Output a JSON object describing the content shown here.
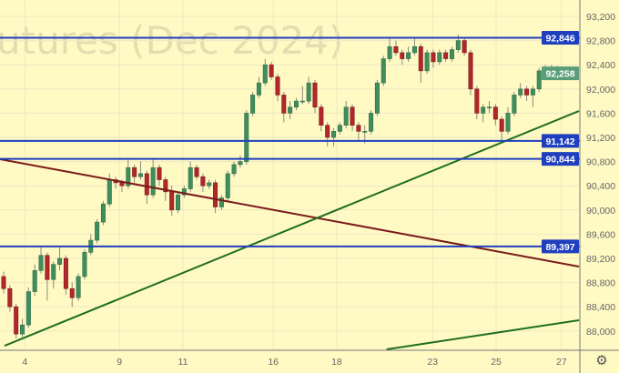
{
  "watermark": "utures (Dec 2024)",
  "settings_icon": "gear-icon",
  "colors": {
    "background": "#fff9c4",
    "grid": "#efe8c2",
    "up": "#3f8f5e",
    "down": "#b3262a",
    "level": "#1f3fbf",
    "resistance_line": "#7a1a1a",
    "support_line": "#1f6e1f",
    "last_price": "#5a9e78"
  },
  "chart_data": {
    "type": "candlestick",
    "title": "",
    "ylim": [
      87800,
      93300
    ],
    "y_ticks": [
      "93,200",
      "92,800",
      "92,400",
      "92,000",
      "91,600",
      "91,200",
      "90,800",
      "90,400",
      "90,000",
      "89,600",
      "89,200",
      "88,800",
      "88,400",
      "88,000"
    ],
    "y_tick_values": [
      93200,
      92800,
      92400,
      92000,
      91600,
      91200,
      90800,
      90400,
      90000,
      89600,
      89200,
      88800,
      88400,
      88000
    ],
    "x_ticks": [
      {
        "label": "4",
        "index": 3.4
      },
      {
        "label": "9",
        "index": 18.6
      },
      {
        "label": "11",
        "index": 28.8
      },
      {
        "label": "16",
        "index": 43.3
      },
      {
        "label": "18",
        "index": 53.5
      },
      {
        "label": "23",
        "index": 68.9
      },
      {
        "label": "25",
        "index": 79.1
      },
      {
        "label": "27",
        "index": 89.6
      }
    ],
    "grid": true,
    "ohlc": [
      [
        88900,
        88980,
        88620,
        88700
      ],
      [
        88700,
        88760,
        88320,
        88400
      ],
      [
        88400,
        88450,
        87880,
        87950
      ],
      [
        87950,
        88200,
        87900,
        88100
      ],
      [
        88100,
        88720,
        88050,
        88650
      ],
      [
        88650,
        89100,
        88580,
        89000
      ],
      [
        89000,
        89400,
        88950,
        89250
      ],
      [
        89250,
        89300,
        88500,
        88850
      ],
      [
        88850,
        89150,
        88700,
        89100
      ],
      [
        89100,
        89400,
        89000,
        89200
      ],
      [
        89200,
        89250,
        88600,
        88700
      ],
      [
        88700,
        88800,
        88400,
        88550
      ],
      [
        88550,
        88950,
        88500,
        88900
      ],
      [
        88900,
        89350,
        88850,
        89300
      ],
      [
        89300,
        89600,
        89250,
        89500
      ],
      [
        89500,
        89850,
        89450,
        89800
      ],
      [
        89800,
        90150,
        89750,
        90100
      ],
      [
        90100,
        90600,
        90050,
        90500
      ],
      [
        90500,
        90550,
        90350,
        90450
      ],
      [
        90450,
        90500,
        90300,
        90400
      ],
      [
        90400,
        90850,
        90350,
        90700
      ],
      [
        90700,
        90750,
        90450,
        90550
      ],
      [
        90550,
        90800,
        90500,
        90600
      ],
      [
        90600,
        90650,
        90100,
        90250
      ],
      [
        90250,
        90850,
        90200,
        90700
      ],
      [
        90700,
        90750,
        90400,
        90500
      ],
      [
        90500,
        90550,
        90150,
        90300
      ],
      [
        90300,
        90400,
        89900,
        90000
      ],
      [
        90000,
        90300,
        89950,
        90250
      ],
      [
        90250,
        90400,
        90200,
        90350
      ],
      [
        90350,
        90800,
        90300,
        90700
      ],
      [
        90700,
        90750,
        90500,
        90550
      ],
      [
        90550,
        90600,
        90300,
        90400
      ],
      [
        90400,
        90500,
        90350,
        90450
      ],
      [
        90450,
        90500,
        89950,
        90050
      ],
      [
        90050,
        90250,
        90000,
        90200
      ],
      [
        90200,
        90650,
        90150,
        90600
      ],
      [
        90600,
        90800,
        90550,
        90750
      ],
      [
        90750,
        90900,
        90700,
        90800
      ],
      [
        90800,
        91650,
        90750,
        91600
      ],
      [
        91600,
        91950,
        91550,
        91900
      ],
      [
        91900,
        92200,
        91850,
        92100
      ],
      [
        92100,
        92500,
        92050,
        92400
      ],
      [
        92400,
        92450,
        92150,
        92200
      ],
      [
        92200,
        92250,
        91800,
        91900
      ],
      [
        91900,
        91950,
        91450,
        91600
      ],
      [
        91600,
        91800,
        91500,
        91700
      ],
      [
        91700,
        91850,
        91650,
        91800
      ],
      [
        91800,
        92050,
        91750,
        91800
      ],
      [
        91800,
        92200,
        91750,
        92100
      ],
      [
        92100,
        92150,
        91600,
        91700
      ],
      [
        91700,
        91750,
        91300,
        91400
      ],
      [
        91400,
        91450,
        91050,
        91200
      ],
      [
        91200,
        91350,
        91050,
        91300
      ],
      [
        91300,
        91450,
        91250,
        91400
      ],
      [
        91400,
        91800,
        91350,
        91700
      ],
      [
        91700,
        91750,
        91300,
        91400
      ],
      [
        91400,
        91450,
        91150,
        91300
      ],
      [
        91300,
        91400,
        91100,
        91300
      ],
      [
        91300,
        91650,
        91250,
        91600
      ],
      [
        91600,
        92150,
        91550,
        92100
      ],
      [
        92100,
        92550,
        92050,
        92500
      ],
      [
        92500,
        92850,
        92450,
        92700
      ],
      [
        92700,
        92800,
        92550,
        92600
      ],
      [
        92600,
        92650,
        92400,
        92500
      ],
      [
        92500,
        92700,
        92450,
        92600
      ],
      [
        92600,
        92850,
        92550,
        92700
      ],
      [
        92700,
        92750,
        92100,
        92300
      ],
      [
        92300,
        92650,
        92250,
        92600
      ],
      [
        92600,
        92650,
        92350,
        92450
      ],
      [
        92450,
        92650,
        92400,
        92600
      ],
      [
        92600,
        92650,
        92450,
        92500
      ],
      [
        92500,
        92700,
        92450,
        92650
      ],
      [
        92650,
        92900,
        92600,
        92800
      ],
      [
        92800,
        92850,
        92550,
        92600
      ],
      [
        92600,
        92650,
        91900,
        92000
      ],
      [
        92000,
        92050,
        91500,
        91600
      ],
      [
        91600,
        91750,
        91450,
        91700
      ],
      [
        91700,
        91800,
        91600,
        91700
      ],
      [
        91700,
        91750,
        91400,
        91500
      ],
      [
        91500,
        91550,
        91150,
        91300
      ],
      [
        91300,
        91700,
        91250,
        91600
      ],
      [
        91600,
        91950,
        91550,
        91900
      ],
      [
        91900,
        92100,
        91850,
        92000
      ],
      [
        92000,
        92050,
        91800,
        91900
      ],
      [
        91900,
        92050,
        91700,
        92000
      ],
      [
        92000,
        92350,
        91950,
        92300
      ],
      [
        92300,
        92400,
        92200,
        92250
      ],
      [
        92250,
        92400,
        92200,
        92350
      ],
      [
        92350,
        92380,
        92220,
        92258
      ]
    ],
    "horizontal_levels": [
      {
        "value": 92846,
        "label": "92,846"
      },
      {
        "value": 91142,
        "label": "91,142"
      },
      {
        "value": 90844,
        "label": "90,844"
      },
      {
        "value": 89397,
        "label": "89,397"
      }
    ],
    "trend_lines": [
      {
        "kind": "resistance",
        "from": [
          -0.6,
          90839
        ],
        "to": [
          92.4,
          89065
        ]
      },
      {
        "kind": "support",
        "from": [
          0.15,
          87756
        ],
        "to": [
          92.4,
          91636
        ]
      },
      {
        "kind": "support",
        "from": [
          61.5,
          87696
        ],
        "to": [
          92.4,
          88178
        ]
      }
    ],
    "last_price": {
      "value": 92258,
      "label": "92,258"
    }
  }
}
